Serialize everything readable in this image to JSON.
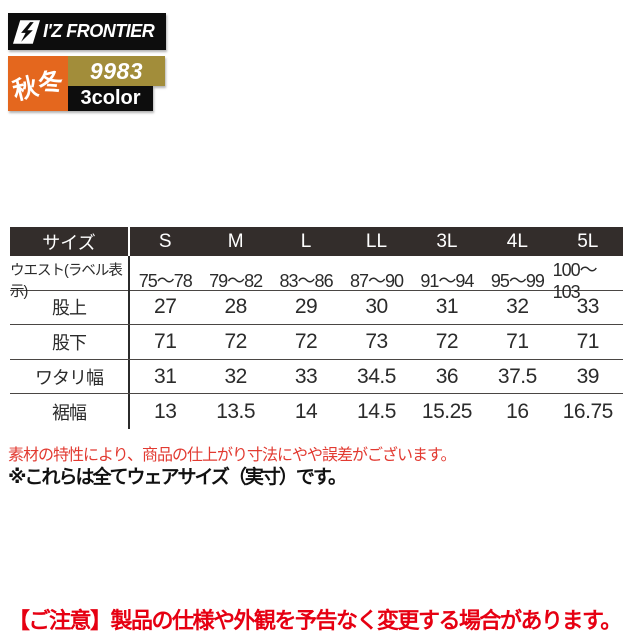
{
  "brand": {
    "name": "I'Z FRONTIER",
    "season_badge": "秋冬",
    "model_number": "9983",
    "color_count": "3color"
  },
  "colors": {
    "season_badge_bg": "#e4671e",
    "model_badge_bg": "#a28d3a",
    "logo_bg": "#0d0d0d",
    "table_header_bg": "#332d2b",
    "material_note_red": "#e23a31",
    "caution_red": "#e60012"
  },
  "size_table": {
    "header_label": "サイズ",
    "sizes": [
      "S",
      "M",
      "L",
      "LL",
      "3L",
      "4L",
      "5L"
    ],
    "rows": [
      {
        "label": "ウエスト(ラベル表示)",
        "values": [
          "75〜78",
          "79〜82",
          "83〜86",
          "87〜90",
          "91〜94",
          "95〜99",
          "100〜103"
        ]
      },
      {
        "label": "股上",
        "values": [
          "27",
          "28",
          "29",
          "30",
          "31",
          "32",
          "33"
        ]
      },
      {
        "label": "股下",
        "values": [
          "71",
          "72",
          "72",
          "73",
          "72",
          "71",
          "71"
        ]
      },
      {
        "label": "ワタリ幅",
        "values": [
          "31",
          "32",
          "33",
          "34.5",
          "36",
          "37.5",
          "39"
        ]
      },
      {
        "label": "裾幅",
        "values": [
          "13",
          "13.5",
          "14",
          "14.5",
          "15.25",
          "16",
          "16.75"
        ]
      }
    ]
  },
  "notes": {
    "material_note": "素材の特性により、商品の仕上がり寸法にやや誤差がございます。",
    "wear_size_note": "※これらは全てウェアサイズ（実寸）です。",
    "caution_notice": "【ご注意】製品の仕様や外観を予告なく変更する場合があります。"
  }
}
